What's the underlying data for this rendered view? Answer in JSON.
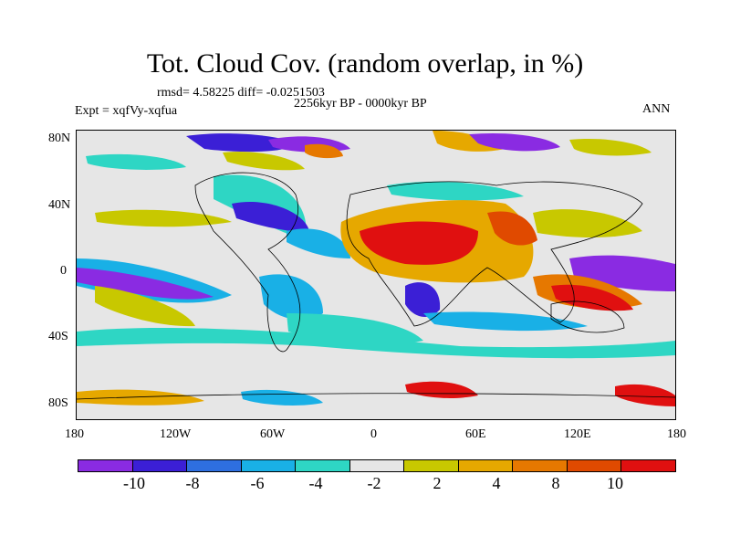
{
  "title": "Tot. Cloud Cov. (random overlap, in %)",
  "stats": "rmsd= 4.58225  diff= -0.0251503",
  "experiment": "Expt = xqfVy-xqfua",
  "period": "2256kyr BP - 0000kyr BP",
  "season": "ANN",
  "lat_ticks": [
    "80N",
    "40N",
    "0",
    "40S",
    "80S"
  ],
  "lon_ticks": [
    "180",
    "120W",
    "60W",
    "0",
    "60E",
    "120E",
    "180"
  ],
  "legend": {
    "labels": [
      "-10",
      "-8",
      "-6",
      "-4",
      "-2",
      "2",
      "4",
      "8",
      "10"
    ],
    "colors": [
      "#8a2be2",
      "#3b1fd6",
      "#2e6fe0",
      "#19b0e6",
      "#2ed6c4",
      "#e6e6e6",
      "#c8c800",
      "#e6a800",
      "#e67800",
      "#e04a00",
      "#e01010"
    ]
  }
}
